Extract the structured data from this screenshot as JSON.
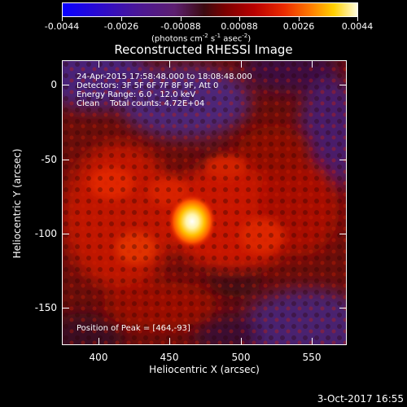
{
  "colorbar": {
    "labels": [
      "-0.0044",
      "-0.0026",
      "-0.00088",
      "0.00088",
      "0.0026",
      "0.0044"
    ],
    "units_prefix": "(photons cm",
    "units_exp1": "-2",
    "units_mid": " s",
    "units_exp2": "-1",
    "units_mid2": " asec",
    "units_exp3": "-2",
    "units_suffix": ")"
  },
  "title": "Reconstructed RHESSI Image",
  "info": {
    "time_range": "24-Apr-2015 17:58:48.000 to 18:08:48.000",
    "detectors": "Detectors: 3F 5F 6F 7F 8F 9F, Att 0",
    "energy_range": "Energy Range: 6.0 - 12.0 keV",
    "clean": "Clean    Total counts: 4.72E+04",
    "peak": "Position of Peak = [464,-93]"
  },
  "axes": {
    "x_ticks": [
      "400",
      "450",
      "500",
      "550"
    ],
    "y_ticks": [
      "0",
      "-50",
      "-100",
      "-150"
    ],
    "xlabel": "Heliocentric X (arcsec)",
    "ylabel": "Heliocentric Y (arcsec)"
  },
  "footer": "3-Oct-2017 16:55",
  "colors": {
    "background": "#000000",
    "foreground": "#ffffff",
    "hot_core": "#fffde0",
    "negative": "#4a2073"
  }
}
